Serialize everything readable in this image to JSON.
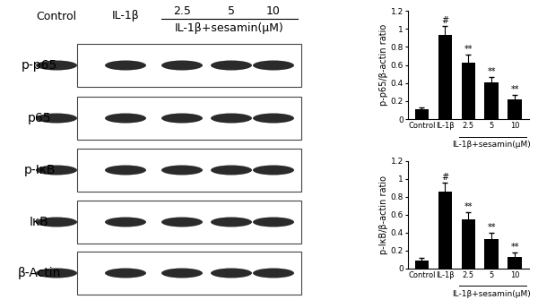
{
  "blot": {
    "columns": [
      "Control",
      "IL-1β",
      "2.5",
      "5",
      "10"
    ],
    "group_label": "IL-1β+sesamin(μM)",
    "rows": [
      "p-p65",
      "p65",
      "p-IκB",
      "IκB",
      "β-Actin"
    ]
  },
  "chart_data": [
    {
      "type": "bar",
      "y_label": "p-p65/β-actin ratio",
      "categories": [
        "Control",
        "IL-1β",
        "2.5",
        "5",
        "10"
      ],
      "values": [
        0.11,
        0.93,
        0.63,
        0.41,
        0.22
      ],
      "error_bars": [
        0.02,
        0.1,
        0.08,
        0.06,
        0.05
      ],
      "significance": [
        null,
        "#",
        "**",
        "**",
        "**"
      ],
      "group_label": "IL-1β+sesamin(μM)",
      "color": "#000000",
      "ylim": [
        0,
        1.2
      ],
      "yticks": [
        0,
        0.2,
        0.4,
        0.6,
        0.8,
        1,
        1.2
      ]
    },
    {
      "type": "bar",
      "y_label": "p-IκB/β-actin ratio",
      "categories": [
        "Control",
        "IL-1β",
        "2.5",
        "5",
        "10"
      ],
      "values": [
        0.09,
        0.86,
        0.55,
        0.33,
        0.13
      ],
      "error_bars": [
        0.03,
        0.1,
        0.08,
        0.07,
        0.05
      ],
      "significance": [
        null,
        "#",
        "**",
        "**",
        "**"
      ],
      "group_label": "IL-1β+sesamin(μM)",
      "color": "#000000",
      "ylim": [
        0,
        1.2
      ],
      "yticks": [
        0,
        0.2,
        0.4,
        0.6,
        0.8,
        1,
        1.2
      ]
    }
  ]
}
